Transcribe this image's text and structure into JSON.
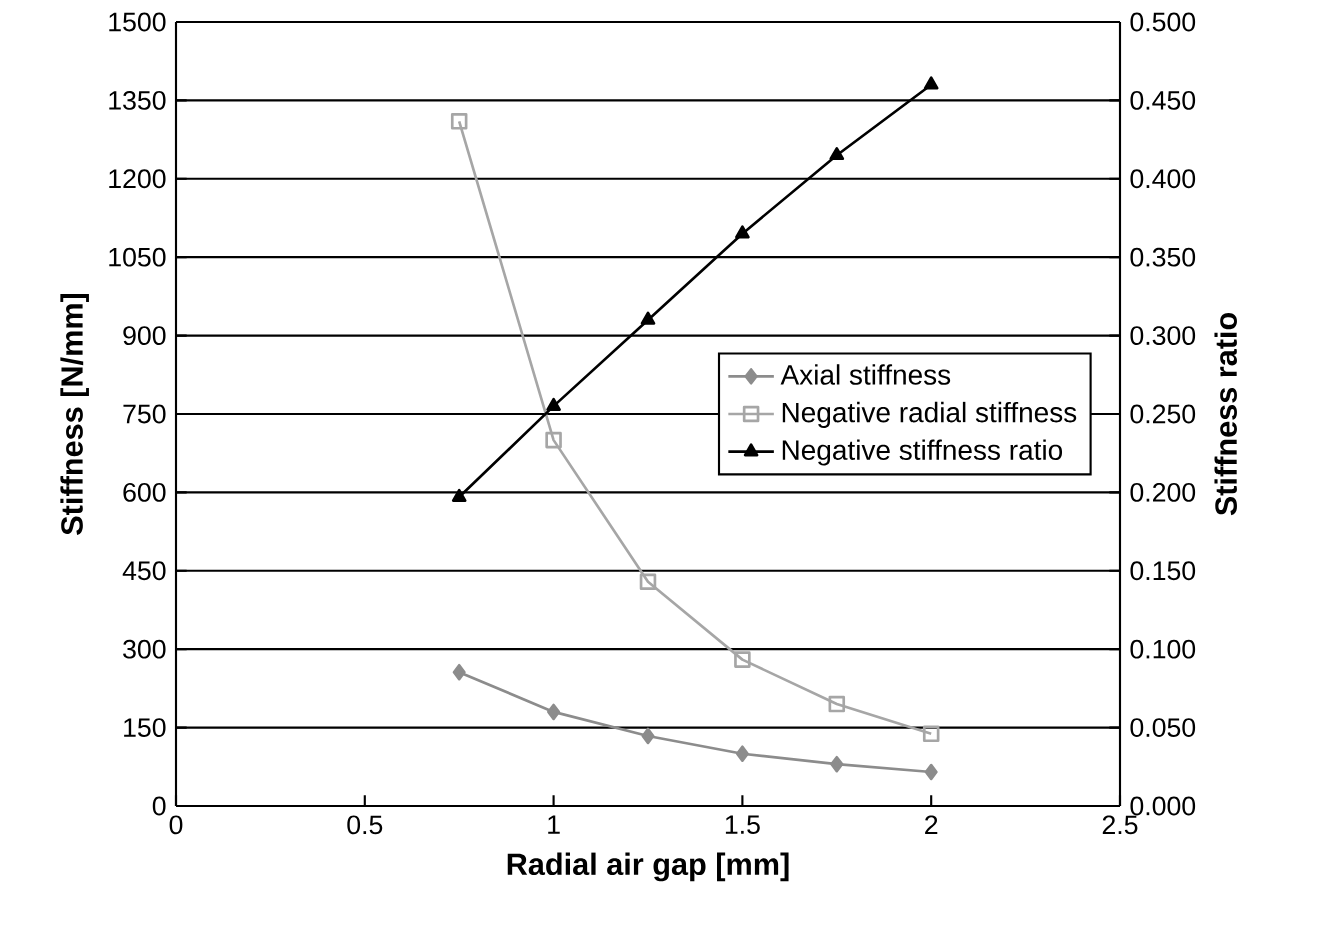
{
  "chart_data": {
    "type": "line",
    "xlabel": "Radial air gap [mm]",
    "ylabel": "Stiffness [N/mm]",
    "y2label": "Stiffness ratio",
    "x": [
      0.75,
      1.0,
      1.25,
      1.5,
      1.75,
      2.0
    ],
    "series": [
      {
        "name": "Axial stiffness",
        "color": "#8c8c8c",
        "marker": "diamond",
        "values": [
          256,
          180,
          134,
          100,
          80,
          65
        ]
      },
      {
        "name": "Negative radial stiffness",
        "color": "#a6a6a6",
        "marker": "square",
        "values": [
          1310,
          700,
          429,
          280,
          195,
          138
        ]
      },
      {
        "name": "Negative stiffness ratio",
        "color": "#000000",
        "marker": "triangle",
        "axis": "y2",
        "values": [
          0.197,
          0.255,
          0.31,
          0.365,
          0.415,
          0.46
        ]
      }
    ],
    "xlim": [
      0,
      2.5
    ],
    "xticks": [
      0,
      0.5,
      1,
      1.5,
      2,
      2.5
    ],
    "ylim": [
      0,
      1500
    ],
    "yticks": [
      0,
      150,
      300,
      450,
      600,
      750,
      900,
      1050,
      1200,
      1350,
      1500
    ],
    "y2lim": [
      0,
      0.5
    ],
    "y2ticks": [
      {
        "value": 0,
        "label": "0.000"
      },
      {
        "value": 0.05,
        "label": "0.050"
      },
      {
        "value": 0.1,
        "label": "0.100"
      },
      {
        "value": 0.15,
        "label": "0.150"
      },
      {
        "value": 0.2,
        "label": "0.200"
      },
      {
        "value": 0.25,
        "label": "0.250"
      },
      {
        "value": 0.3,
        "label": "0.300"
      },
      {
        "value": 0.35,
        "label": "0.350"
      },
      {
        "value": 0.4,
        "label": "0.400"
      },
      {
        "value": 0.45,
        "label": "0.450"
      },
      {
        "value": 0.5,
        "label": "0.500"
      }
    ],
    "grid": "y",
    "legend": "right",
    "line_style": "solid"
  }
}
